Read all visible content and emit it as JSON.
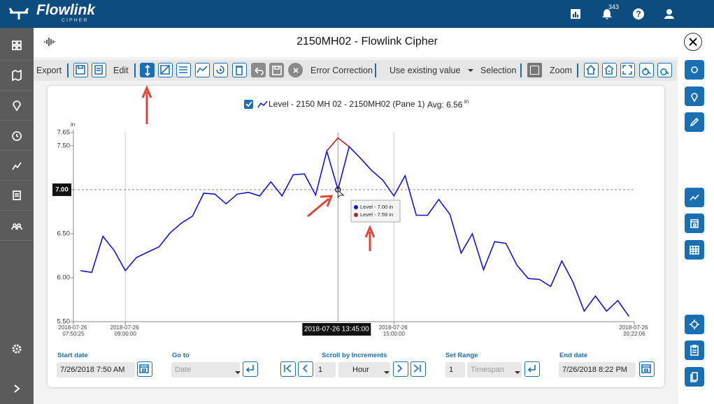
{
  "header": {
    "brand": "Flowlink",
    "sub_brand": "CIPHER",
    "notifications": "343"
  },
  "title": "2150MH02 - Flowlink Cipher",
  "toolbar": {
    "export": "Export",
    "edit": "Edit",
    "error_correction": "Error Correction",
    "correction_mode": "Use existing value",
    "selection": "Selection",
    "zoom": "Zoom"
  },
  "chart_data": {
    "type": "line",
    "x": [
      "2018-07-26 08:00:00",
      "2018-07-26 08:15:00",
      "2018-07-26 08:30:00",
      "2018-07-26 08:45:00",
      "2018-07-26 09:00:00",
      "2018-07-26 09:15:00",
      "2018-07-26 09:30:00",
      "2018-07-26 09:45:00",
      "2018-07-26 10:00:00",
      "2018-07-26 10:15:00",
      "2018-07-26 10:30:00",
      "2018-07-26 10:45:00",
      "2018-07-26 11:00:00",
      "2018-07-26 11:15:00",
      "2018-07-26 11:30:00",
      "2018-07-26 11:45:00",
      "2018-07-26 12:00:00",
      "2018-07-26 12:15:00",
      "2018-07-26 12:30:00",
      "2018-07-26 12:45:00",
      "2018-07-26 13:00:00",
      "2018-07-26 13:15:00",
      "2018-07-26 13:30:00",
      "2018-07-26 13:45:00",
      "2018-07-26 14:00:00",
      "2018-07-26 14:15:00",
      "2018-07-26 14:30:00",
      "2018-07-26 14:45:00",
      "2018-07-26 15:00:00",
      "2018-07-26 15:15:00",
      "2018-07-26 15:30:00",
      "2018-07-26 15:45:00",
      "2018-07-26 16:00:00",
      "2018-07-26 16:15:00",
      "2018-07-26 16:30:00",
      "2018-07-26 16:45:00",
      "2018-07-26 17:00:00",
      "2018-07-26 17:15:00",
      "2018-07-26 17:30:00",
      "2018-07-26 17:45:00",
      "2018-07-26 18:00:00",
      "2018-07-26 18:15:00",
      "2018-07-26 18:30:00",
      "2018-07-26 18:45:00",
      "2018-07-26 19:00:00",
      "2018-07-26 19:15:00",
      "2018-07-26 19:30:00",
      "2018-07-26 19:45:00",
      "2018-07-26 20:00:00",
      "2018-07-26 20:15:00"
    ],
    "series": [
      {
        "name": "Level - 2150 MH 02 - 2150MH02 (Pane 1)",
        "color": "#1414c8",
        "values": [
          6.08,
          6.06,
          6.47,
          6.31,
          6.08,
          6.23,
          6.29,
          6.35,
          6.51,
          6.62,
          6.7,
          6.96,
          6.95,
          6.84,
          6.95,
          6.97,
          6.93,
          7.09,
          6.93,
          7.17,
          7.18,
          6.94,
          7.44,
          7.0,
          7.49,
          7.36,
          7.22,
          7.11,
          6.93,
          7.16,
          6.71,
          6.71,
          6.89,
          6.72,
          6.28,
          6.5,
          6.09,
          6.41,
          6.39,
          6.14,
          5.99,
          5.98,
          5.9,
          6.19,
          5.95,
          5.62,
          5.79,
          5.62,
          5.74,
          5.56
        ]
      },
      {
        "color": "#b22222",
        "values": [
          null,
          null,
          null,
          null,
          null,
          null,
          null,
          null,
          null,
          null,
          null,
          null,
          null,
          null,
          null,
          null,
          null,
          null,
          null,
          null,
          null,
          null,
          7.44,
          7.59,
          7.49,
          null,
          null,
          null,
          null,
          null,
          null,
          null,
          null,
          null,
          null,
          null,
          null,
          null,
          null,
          null,
          null,
          null,
          null,
          null,
          null,
          null,
          null,
          null,
          null,
          null
        ]
      }
    ],
    "xlim": [
      "2018-07-26 07:50:25",
      "2018-07-26 20:22:06"
    ],
    "xticks": [
      "2018-07-26 07:50:25",
      "2018-07-26 09:00:00",
      "2018-07-26 15:00:00",
      "2018-07-26 20:22:06"
    ],
    "ylim": [
      5.5,
      7.65
    ],
    "yticks": [
      {
        "value": 5.5,
        "label": "5.50"
      },
      {
        "value": 6,
        "label": "6.00"
      },
      {
        "value": 6.5,
        "label": "6.50"
      },
      {
        "value": 7,
        "label": "7.00"
      },
      {
        "value": 7.5,
        "label": "7.50"
      },
      {
        "value": 7.65,
        "label": "7.65"
      }
    ],
    "y_unit": "in",
    "legend_avg": "Avg: 6.56",
    "legend_avg_unit": "in",
    "crosshair": {
      "x": "2018-07-26 13:45:00",
      "y": {
        "value": 7,
        "label": "7.00"
      }
    },
    "tooltip": [
      "Level - 7.00 in",
      "Level - 7.59 in"
    ]
  },
  "controls": {
    "start_date": {
      "label": "Start date",
      "value": "7/26/2018 7:50 AM"
    },
    "go_to": {
      "label": "Go to",
      "value": "Date"
    },
    "scroll": {
      "label": "Scroll by Increments",
      "amount": "1",
      "unit": "Hour"
    },
    "range": {
      "label": "Set Range",
      "amount": "1",
      "unit": "Timespan"
    },
    "end_date": {
      "label": "End date",
      "value": "7/26/2018 8:22 PM"
    }
  }
}
